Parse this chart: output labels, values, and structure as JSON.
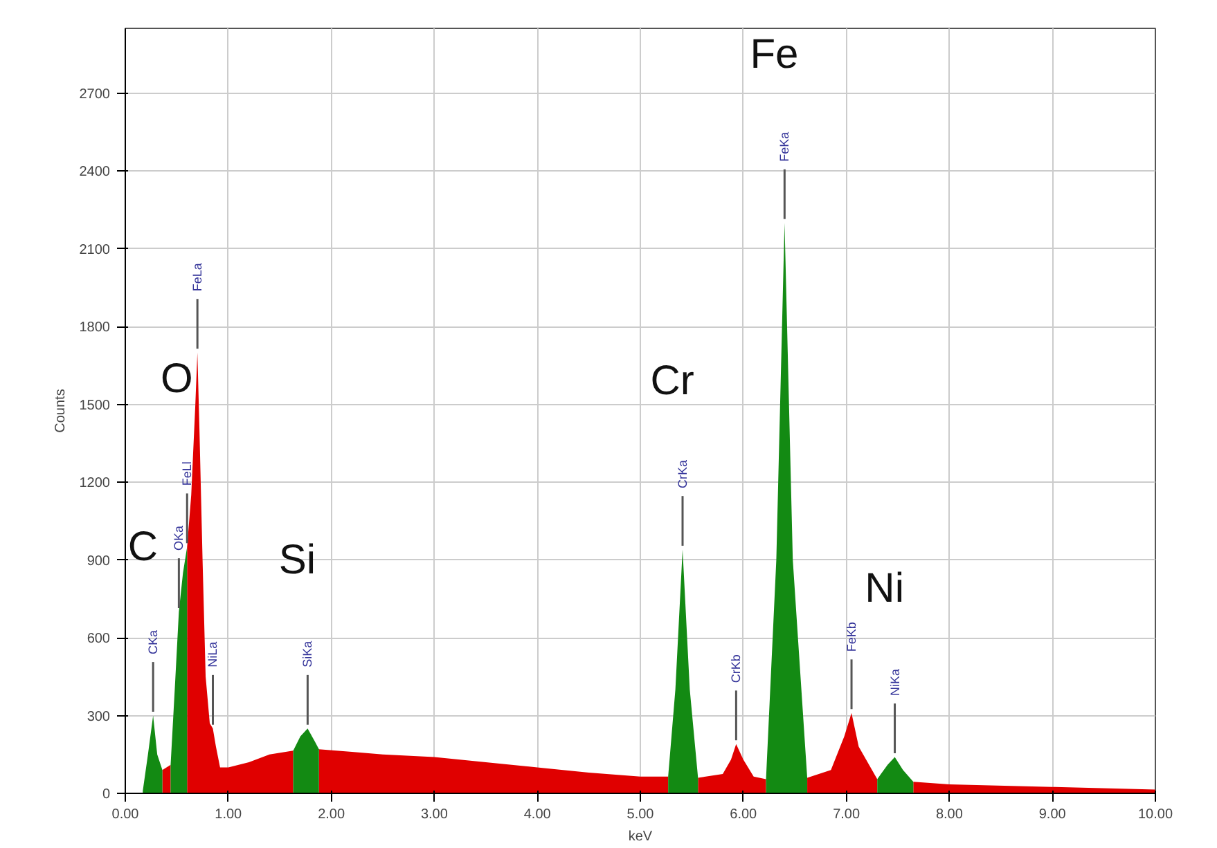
{
  "chart_data": {
    "type": "area",
    "xlabel": "keV",
    "ylabel": "Counts",
    "x": [
      0.17,
      0.22,
      0.27,
      0.31,
      0.36,
      0.4,
      0.44,
      0.48,
      0.52,
      0.56,
      0.6,
      0.64,
      0.68,
      0.7,
      0.72,
      0.75,
      0.78,
      0.82,
      0.85,
      0.88,
      0.92,
      1.0,
      1.2,
      1.4,
      1.63,
      1.7,
      1.77,
      1.84,
      1.88,
      2.2,
      2.5,
      3.0,
      3.5,
      4.0,
      4.5,
      5.0,
      5.27,
      5.34,
      5.41,
      5.48,
      5.56,
      5.8,
      5.88,
      5.93,
      6.0,
      6.1,
      6.22,
      6.32,
      6.4,
      6.48,
      6.62,
      6.85,
      6.98,
      7.05,
      7.12,
      7.3,
      7.4,
      7.47,
      7.55,
      7.65,
      8.0,
      9.0,
      10.0
    ],
    "series": [
      {
        "color": "#e00000",
        "values": [
          null,
          null,
          null,
          null,
          90,
          100,
          110,
          null,
          null,
          null,
          950,
          1150,
          1500,
          1700,
          1400,
          900,
          450,
          270,
          250,
          180,
          100,
          100,
          120,
          150,
          165,
          null,
          null,
          null,
          170,
          160,
          150,
          140,
          120,
          100,
          80,
          65,
          65,
          null,
          null,
          null,
          60,
          75,
          130,
          190,
          130,
          65,
          55,
          null,
          null,
          null,
          60,
          90,
          220,
          310,
          180,
          55,
          null,
          null,
          null,
          45,
          35,
          25,
          15
        ]
      },
      {
        "color": "#138a13",
        "values": [
          10,
          150,
          300,
          150,
          90,
          null,
          110,
          400,
          700,
          850,
          950,
          null,
          null,
          null,
          null,
          null,
          null,
          null,
          null,
          null,
          null,
          null,
          null,
          null,
          165,
          220,
          250,
          200,
          170,
          null,
          null,
          null,
          null,
          null,
          null,
          null,
          65,
          400,
          940,
          400,
          60,
          null,
          null,
          null,
          null,
          null,
          55,
          900,
          2200,
          900,
          60,
          null,
          null,
          null,
          null,
          55,
          110,
          140,
          90,
          45,
          null,
          null,
          null
        ]
      }
    ],
    "xlim": [
      0,
      10
    ],
    "ylim": [
      0,
      2950
    ],
    "xticks": [
      {
        "value": 0,
        "label": "0.00"
      },
      {
        "value": 1,
        "label": "1.00"
      },
      {
        "value": 2,
        "label": "2.00"
      },
      {
        "value": 3,
        "label": "3.00"
      },
      {
        "value": 4,
        "label": "4.00"
      },
      {
        "value": 5,
        "label": "5.00"
      },
      {
        "value": 6,
        "label": "6.00"
      },
      {
        "value": 7,
        "label": "7.00"
      },
      {
        "value": 8,
        "label": "8.00"
      },
      {
        "value": 9,
        "label": "9.00"
      },
      {
        "value": 10,
        "label": "10.00"
      }
    ],
    "yticks": [
      0,
      300,
      600,
      900,
      1200,
      1500,
      1800,
      2100,
      2400,
      2700
    ],
    "grid": true,
    "annotations": [
      "C",
      "O",
      "Si",
      "Cr",
      "Fe",
      "Ni",
      {
        "text": "CKa",
        "x": 0.27,
        "y": 300
      },
      {
        "text": "OKa",
        "x": 0.52,
        "y": 700
      },
      {
        "text": "FeLl",
        "x": 0.6,
        "y": 950
      },
      {
        "text": "FeLa",
        "x": 0.7,
        "y": 1700
      },
      {
        "text": "NiLa",
        "x": 0.85,
        "y": 250
      },
      {
        "text": "SiKa",
        "x": 1.77,
        "y": 250
      },
      {
        "text": "CrKa",
        "x": 5.41,
        "y": 940
      },
      {
        "text": "CrKb",
        "x": 5.93,
        "y": 190
      },
      {
        "text": "FeKa",
        "x": 6.4,
        "y": 2200
      },
      {
        "text": "FeKb",
        "x": 7.05,
        "y": 310
      },
      {
        "text": "NiKa",
        "x": 7.47,
        "y": 140
      }
    ]
  }
}
